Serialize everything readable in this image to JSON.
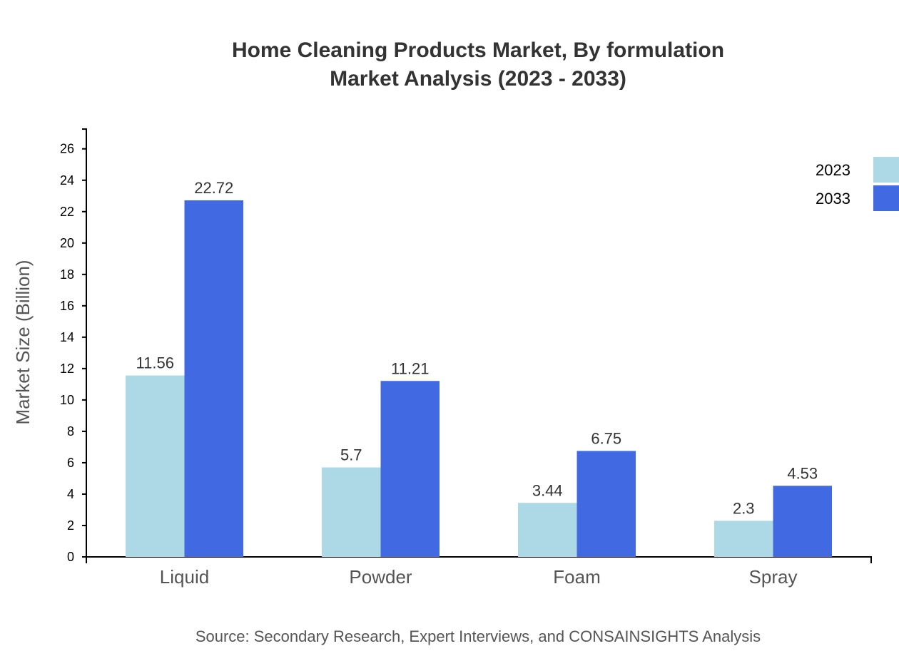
{
  "chart_data": {
    "type": "bar",
    "title": "Home Cleaning Products Market, By formulation",
    "subtitle": "Market Analysis (2023 - 2033)",
    "xlabel": "",
    "ylabel": "Market Size (Billion)",
    "ylim": [
      0,
      27.26
    ],
    "yticks": [
      0,
      2,
      4,
      6,
      8,
      10,
      12,
      14,
      16,
      18,
      20,
      22,
      24,
      26
    ],
    "categories": [
      "Liquid",
      "Powder",
      "Foam",
      "Spray"
    ],
    "series": [
      {
        "name": "2023",
        "color": "#add8e6",
        "values": [
          11.56,
          5.7,
          3.44,
          2.3
        ]
      },
      {
        "name": "2033",
        "color": "#4169e1",
        "values": [
          22.72,
          11.21,
          6.75,
          4.53
        ]
      }
    ],
    "grid": false,
    "legend": "top-right",
    "source": "Source: Secondary Research, Expert Interviews, and CONSAINSIGHTS Analysis"
  }
}
